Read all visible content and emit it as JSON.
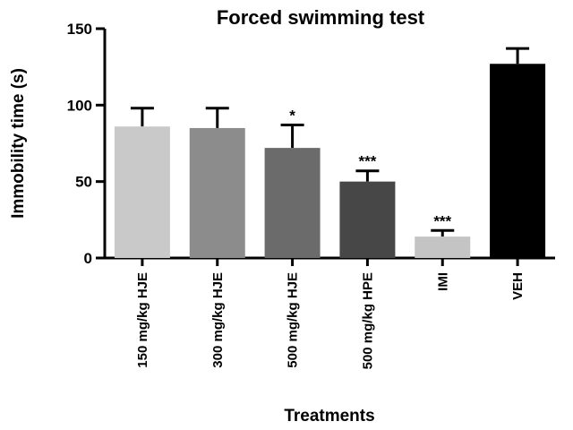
{
  "chart_data": {
    "type": "bar",
    "title": "Forced swimming test",
    "xlabel": "Treatments",
    "ylabel": "Immobility time (s)",
    "ylim": [
      0,
      150
    ],
    "yticks": [
      "0",
      "50",
      "100",
      "150"
    ],
    "grid": false,
    "categories": [
      "150 mg/kg HJE",
      "300 mg/kg HJE",
      "500  mg/kg HJE",
      "500 mg/kg HPE",
      "IMI",
      "VEH"
    ],
    "values": [
      86,
      85,
      72,
      50,
      14,
      127
    ],
    "errors": [
      12,
      13,
      15,
      7,
      4,
      10
    ],
    "significance": [
      "",
      "",
      "*",
      "***",
      "***",
      ""
    ],
    "colors": [
      "#c9c9c9",
      "#8c8c8c",
      "#6b6b6b",
      "#474747",
      "#c4c4c4",
      "#000000"
    ]
  }
}
